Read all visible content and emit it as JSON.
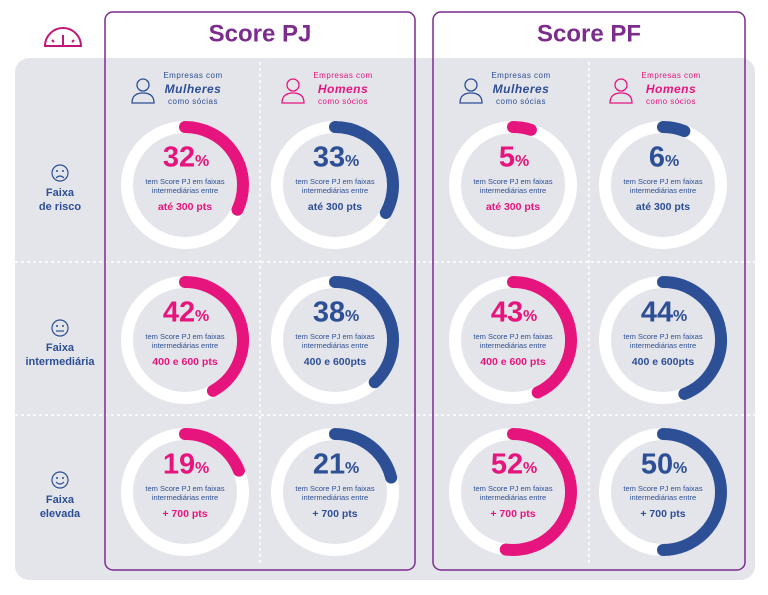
{
  "unit": "%",
  "rows": [
    {
      "label": [
        "Faixa",
        "de risco"
      ],
      "face": "sad"
    },
    {
      "label": [
        "Faixa",
        "intermediária"
      ],
      "face": "neutral"
    },
    {
      "label": [
        "Faixa",
        "elevada"
      ],
      "face": "happy"
    }
  ],
  "panels": [
    {
      "title": "Score PJ",
      "columns": [
        {
          "top": "Empresas com",
          "main": "Mulheres",
          "bottom": "como sócias",
          "color": "#e6157d",
          "header_color": "#2d4f96"
        },
        {
          "top": "Empresas com",
          "main": "Homens",
          "bottom": "como sócios",
          "color": "#2d4f96",
          "header_color": "#e6157d"
        }
      ],
      "cells": [
        [
          {
            "value": 32,
            "text": [
              "tem Score PJ em faixas",
              "intermediárias entre"
            ],
            "range": "até 300 pts"
          },
          {
            "value": 33,
            "text": [
              "tem Score PJ em faixas",
              "intermediárias entre"
            ],
            "range": "até 300 pts"
          }
        ],
        [
          {
            "value": 42,
            "text": [
              "tem Score PJ em faixas",
              "intermediárias entre"
            ],
            "range": "400 e 600 pts"
          },
          {
            "value": 38,
            "text": [
              "tem Score PJ em faixas",
              "intermediárias entre"
            ],
            "range": "400 e 600pts"
          }
        ],
        [
          {
            "value": 19,
            "text": [
              "tem Score PJ em faixas",
              "intermediárias entre"
            ],
            "range": "+ 700 pts"
          },
          {
            "value": 21,
            "text": [
              "tem Score PJ em faixas",
              "intermediárias entre"
            ],
            "range": "+ 700 pts"
          }
        ]
      ]
    },
    {
      "title": "Score PF",
      "columns": [
        {
          "top": "Empresas com",
          "main": "Mulheres",
          "bottom": "como sócias",
          "color": "#e6157d",
          "header_color": "#2d4f96"
        },
        {
          "top": "Empresas com",
          "main": "Homens",
          "bottom": "como sócios",
          "color": "#2d4f96",
          "header_color": "#e6157d"
        }
      ],
      "cells": [
        [
          {
            "value": 5,
            "text": [
              "tem Score PJ em faixas",
              "intermediárias entre"
            ],
            "range": "até 300 pts"
          },
          {
            "value": 6,
            "text": [
              "tem Score PJ em faixas",
              "intermediárias entre"
            ],
            "range": "até 300 pts"
          }
        ],
        [
          {
            "value": 43,
            "text": [
              "tem Score PJ em faixas",
              "intermediárias entre"
            ],
            "range": "400 e 600 pts"
          },
          {
            "value": 44,
            "text": [
              "tem Score PJ em faixas",
              "intermediárias entre"
            ],
            "range": "400 e 600pts"
          }
        ],
        [
          {
            "value": 52,
            "text": [
              "tem Score PJ em faixas",
              "intermediárias entre"
            ],
            "range": "+ 700 pts"
          },
          {
            "value": 50,
            "text": [
              "tem Score PJ em faixas",
              "intermediárias entre"
            ],
            "range": "+ 700 pts"
          }
        ]
      ]
    }
  ]
}
